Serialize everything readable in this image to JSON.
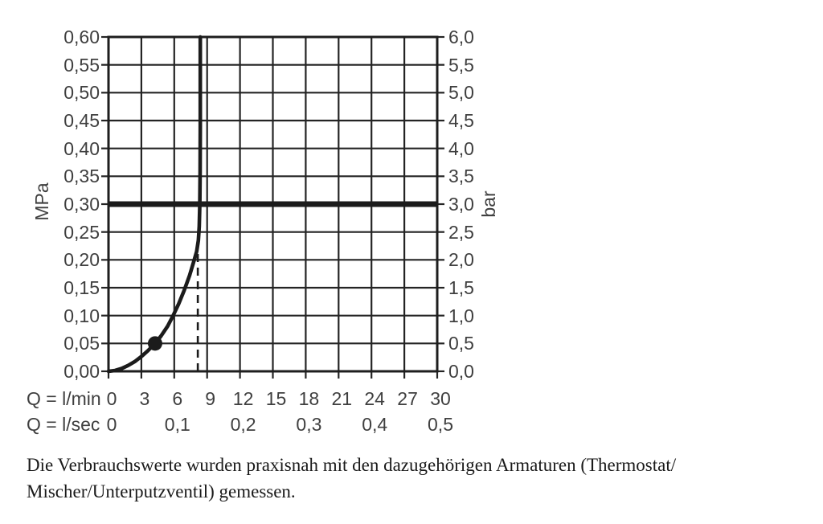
{
  "page": {
    "background": "#ffffff"
  },
  "chart_data": {
    "type": "line",
    "title": "",
    "description": "Pressure vs flow-rate diagram for a sanitary fitting",
    "grid": {
      "on": true,
      "x_step_lmin": 3,
      "y_step_mpa": 0.05
    },
    "x_axis": {
      "range_lmin": [
        0,
        30
      ],
      "rows": [
        {
          "label": "Q = l/min",
          "ticks": [
            "0",
            "3",
            "6",
            "9",
            "12",
            "15",
            "18",
            "21",
            "24",
            "27",
            "30"
          ],
          "values": [
            0,
            3,
            6,
            9,
            12,
            15,
            18,
            21,
            24,
            27,
            30
          ]
        },
        {
          "label": "Q = l/sec",
          "ticks": [
            "0",
            "0,1",
            "0,2",
            "0,3",
            "0,4",
            "0,5"
          ],
          "values": [
            0,
            6,
            12,
            18,
            24,
            30
          ]
        }
      ]
    },
    "y_axis_left": {
      "label": "MPa",
      "range": [
        0,
        0.6
      ],
      "ticks": [
        "0,60",
        "0,55",
        "0,50",
        "0,45",
        "0,40",
        "0,35",
        "0,30",
        "0,25",
        "0,20",
        "0,15",
        "0,10",
        "0,05",
        "0,00"
      ],
      "values": [
        0.6,
        0.55,
        0.5,
        0.45,
        0.4,
        0.35,
        0.3,
        0.25,
        0.2,
        0.15,
        0.1,
        0.05,
        0.0
      ]
    },
    "y_axis_right": {
      "label": "bar",
      "range": [
        0,
        6.0
      ],
      "ticks": [
        "6,0",
        "5,5",
        "5,0",
        "4,5",
        "4,0",
        "3,5",
        "3,0",
        "2,5",
        "2,0",
        "1,5",
        "1,0",
        "0,5",
        "0,0"
      ],
      "values": [
        6.0,
        5.5,
        5.0,
        4.5,
        4.0,
        3.5,
        3.0,
        2.5,
        2.0,
        1.5,
        1.0,
        0.5,
        0.0
      ]
    },
    "series": [
      {
        "name": "flow-pressure-curve",
        "type": "curve",
        "points": [
          [
            0,
            0
          ],
          [
            0.6,
            0.0015
          ],
          [
            1.2,
            0.005
          ],
          [
            1.8,
            0.0105
          ],
          [
            2.4,
            0.0175
          ],
          [
            3,
            0.0265
          ],
          [
            3.6,
            0.037
          ],
          [
            4.25,
            0.05
          ],
          [
            4.8,
            0.0635
          ],
          [
            5.4,
            0.081
          ],
          [
            5.9,
            0.1
          ],
          [
            6.4,
            0.121
          ],
          [
            6.9,
            0.145
          ],
          [
            7.4,
            0.172
          ],
          [
            7.8,
            0.198
          ],
          [
            8.05,
            0.215
          ],
          [
            8.2,
            0.235
          ],
          [
            8.28,
            0.26
          ],
          [
            8.33,
            0.3
          ],
          [
            8.36,
            0.36
          ],
          [
            8.375,
            0.44
          ],
          [
            8.38,
            0.6
          ]
        ]
      },
      {
        "name": "reference-pressure-line",
        "type": "hline",
        "y_mpa": 0.3
      },
      {
        "name": "flow-limit-dashed-line",
        "type": "vline-dashed",
        "x_lmin": 8.15,
        "y_from_mpa": 0,
        "y_to_mpa": 0.212
      },
      {
        "name": "marker-point",
        "type": "point",
        "x_lmin": 4.25,
        "y_mpa": 0.05
      }
    ],
    "colors": {
      "grid": "#242424",
      "border": "#1e1e1e",
      "curve": "#1b1b1b",
      "text": "#3f3f3f"
    }
  },
  "caption": {
    "line1": "Die Verbrauchswerte wurden praxisnah mit den dazugehörigen Armaturen (Thermostat/",
    "line2": "Mischer/Unterputzventil) gemessen."
  }
}
